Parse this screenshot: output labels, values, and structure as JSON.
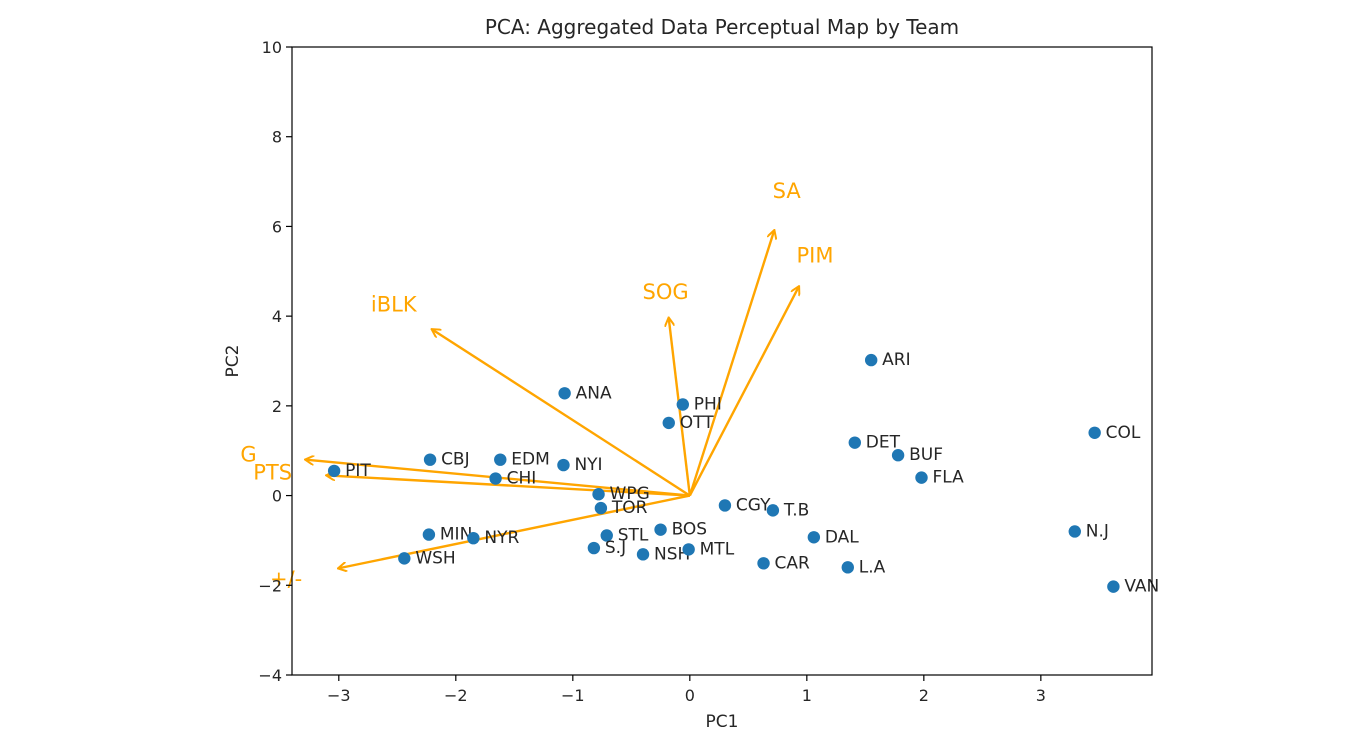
{
  "chart_data": {
    "type": "scatter",
    "title": "PCA: Aggregated Data Perceptual Map by Team",
    "xlabel": "PC1",
    "ylabel": "PC2",
    "xlim": [
      -3.4,
      3.95
    ],
    "ylim": [
      -4,
      10
    ],
    "xticks": [
      -3,
      -2,
      -1,
      0,
      1,
      2,
      3
    ],
    "xtick_labels": [
      "−3",
      "−2",
      "−1",
      "0",
      "1",
      "2",
      "3"
    ],
    "yticks": [
      -4,
      -2,
      0,
      2,
      4,
      6,
      8,
      10
    ],
    "ytick_labels": [
      "−4",
      "−2",
      "0",
      "2",
      "4",
      "6",
      "8",
      "10"
    ],
    "grid": false,
    "point_color": "#1f77b4",
    "arrow_color": "#ffa500",
    "points": [
      {
        "label": "PIT",
        "x": -3.04,
        "y": 0.55
      },
      {
        "label": "CBJ",
        "x": -2.22,
        "y": 0.8
      },
      {
        "label": "EDM",
        "x": -1.62,
        "y": 0.8
      },
      {
        "label": "NYI",
        "x": -1.08,
        "y": 0.68
      },
      {
        "label": "CHI",
        "x": -1.66,
        "y": 0.38
      },
      {
        "label": "ANA",
        "x": -1.07,
        "y": 2.28
      },
      {
        "label": "PHI",
        "x": -0.06,
        "y": 2.03
      },
      {
        "label": "OTT",
        "x": -0.18,
        "y": 1.62
      },
      {
        "label": "WPG",
        "x": -0.78,
        "y": 0.03
      },
      {
        "label": "TOR",
        "x": -0.76,
        "y": -0.28
      },
      {
        "label": "MIN",
        "x": -2.23,
        "y": -0.87
      },
      {
        "label": "NYR",
        "x": -1.85,
        "y": -0.95
      },
      {
        "label": "WSH",
        "x": -2.44,
        "y": -1.4
      },
      {
        "label": "STL",
        "x": -0.71,
        "y": -0.89
      },
      {
        "label": "S.J",
        "x": -0.82,
        "y": -1.17
      },
      {
        "label": "NSH",
        "x": -0.4,
        "y": -1.31
      },
      {
        "label": "BOS",
        "x": -0.25,
        "y": -0.76
      },
      {
        "label": "MTL",
        "x": -0.01,
        "y": -1.2
      },
      {
        "label": "CGY",
        "x": 0.3,
        "y": -0.22
      },
      {
        "label": "T.B",
        "x": 0.71,
        "y": -0.33
      },
      {
        "label": "CAR",
        "x": 0.63,
        "y": -1.51
      },
      {
        "label": "DAL",
        "x": 1.06,
        "y": -0.93
      },
      {
        "label": "L.A",
        "x": 1.35,
        "y": -1.6
      },
      {
        "label": "ARI",
        "x": 1.55,
        "y": 3.02
      },
      {
        "label": "DET",
        "x": 1.41,
        "y": 1.18
      },
      {
        "label": "BUF",
        "x": 1.78,
        "y": 0.9
      },
      {
        "label": "FLA",
        "x": 1.98,
        "y": 0.4
      },
      {
        "label": "COL",
        "x": 3.46,
        "y": 1.4
      },
      {
        "label": "N.J",
        "x": 3.29,
        "y": -0.8
      },
      {
        "label": "VAN",
        "x": 3.62,
        "y": -2.03
      }
    ],
    "loadings": [
      {
        "label": "G",
        "x": -3.28,
        "y": 0.8
      },
      {
        "label": "PTS",
        "x": -3.1,
        "y": 0.45
      },
      {
        "label": "+/-",
        "x": -3.0,
        "y": -1.62
      },
      {
        "label": "iBLK",
        "x": -2.2,
        "y": 3.7
      },
      {
        "label": "SOG",
        "x": -0.18,
        "y": 3.95
      },
      {
        "label": "SA",
        "x": 0.72,
        "y": 5.9
      },
      {
        "label": "PIM",
        "x": 0.93,
        "y": 4.65
      }
    ]
  }
}
